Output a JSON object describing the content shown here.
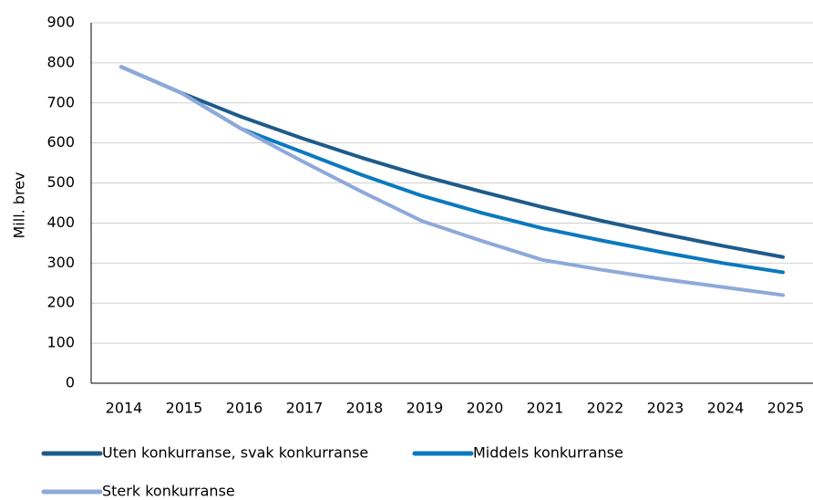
{
  "chart_data": {
    "type": "line",
    "y_label": "Mill. brev",
    "categories": [
      "2014",
      "2015",
      "2016",
      "2017",
      "2018",
      "2019",
      "2020",
      "2021",
      "2022",
      "2023",
      "2024",
      "2025"
    ],
    "series": [
      {
        "name": "Uten konkurranse, svak konkurranse",
        "color": "#1d5b8a",
        "values": [
          790,
          725,
          665,
          612,
          563,
          518,
          478,
          440,
          405,
          373,
          343,
          315
        ]
      },
      {
        "name": "Middels konkurranse",
        "color": "#0b79be",
        "values": [
          790,
          725,
          635,
          578,
          520,
          468,
          425,
          387,
          356,
          327,
          300,
          277
        ]
      },
      {
        "name": "Sterk konkurranse",
        "color": "#8ea9d9",
        "values": [
          790,
          725,
          635,
          555,
          478,
          405,
          355,
          308,
          283,
          260,
          240,
          220
        ]
      }
    ],
    "ylim": [
      0,
      900
    ],
    "yticks": [
      0,
      100,
      200,
      300,
      400,
      500,
      600,
      700,
      800,
      900
    ],
    "grid": true,
    "legend": "bottom"
  }
}
